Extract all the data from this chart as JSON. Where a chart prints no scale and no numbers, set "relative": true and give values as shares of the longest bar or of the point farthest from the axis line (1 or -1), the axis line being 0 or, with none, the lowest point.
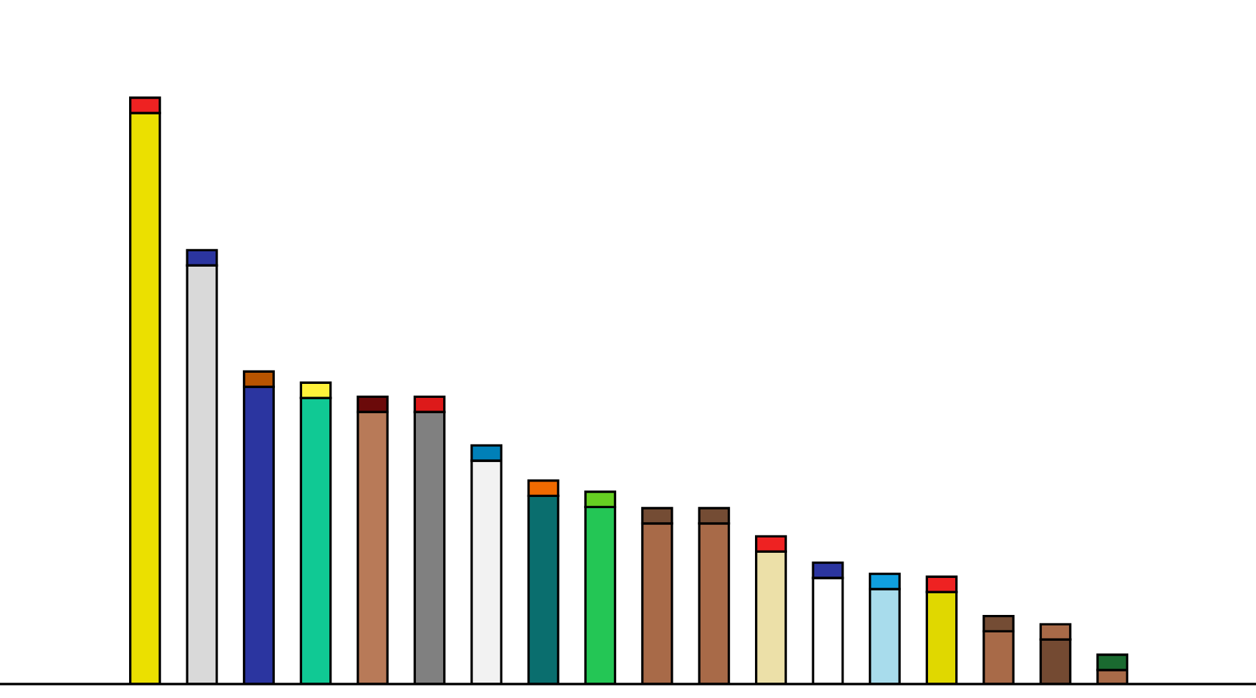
{
  "chart_data": {
    "type": "bar",
    "stacked": true,
    "relative": true,
    "categories": [
      null,
      null,
      null,
      null,
      null,
      null,
      null,
      null,
      null,
      null,
      null,
      null,
      null,
      null,
      null,
      null,
      null,
      null
    ],
    "series": [
      {
        "values": [
          0.974,
          0.714,
          0.507,
          0.488,
          0.464,
          0.464,
          0.381,
          0.321,
          0.302,
          0.274,
          0.274,
          0.226,
          0.181,
          0.162,
          0.157,
          0.09,
          0.076,
          0.024
        ],
        "colors": [
          "#ebe000",
          "#d9d9d9",
          "#2b35a0",
          "#10c994",
          "#b87a58",
          "#808080",
          "#f2f2f2",
          "#0a6e6e",
          "#24c655",
          "#a86a48",
          "#a86a48",
          "#ece0a8",
          "#ffffff",
          "#a8dcec",
          "#e0d800",
          "#a86a48",
          "#744a32",
          "#a86a48"
        ]
      },
      {
        "values": [
          0.026,
          0.026,
          0.026,
          0.026,
          0.026,
          0.026,
          0.026,
          0.026,
          0.026,
          0.026,
          0.026,
          0.026,
          0.026,
          0.026,
          0.026,
          0.026,
          0.026,
          0.026
        ],
        "colors": [
          "#ee2222",
          "#2b35a0",
          "#b85400",
          "#fff23a",
          "#6b0a0a",
          "#dd1a1a",
          "#0080b8",
          "#f06a00",
          "#66d022",
          "#744c34",
          "#744c34",
          "#ee2222",
          "#2b35a0",
          "#10a0e0",
          "#ee2222",
          "#744c34",
          "#a86a48",
          "#1a6a30"
        ]
      }
    ]
  }
}
